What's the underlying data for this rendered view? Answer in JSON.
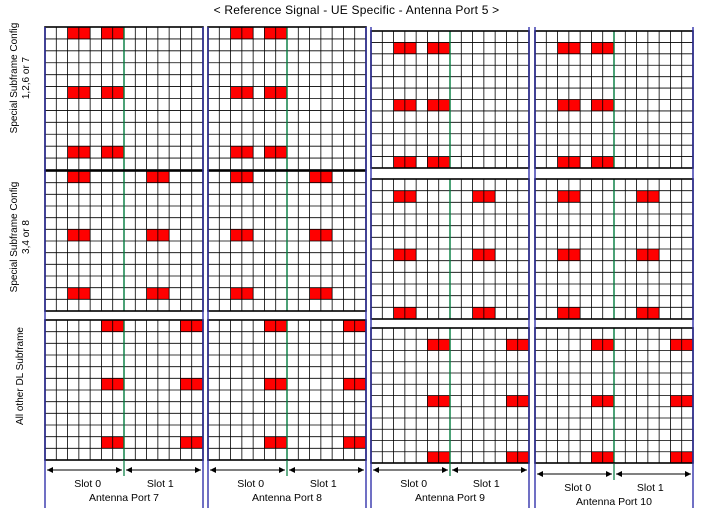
{
  "title": "< Reference Signal - UE Specific - Antenna Port 5 >",
  "row_labels": [
    {
      "line1": "Special Subframe Config",
      "line2": "1,2,6 or 7"
    },
    {
      "line1": "Special Subframe Config",
      "line2": "3,4 or 8"
    },
    {
      "line1": "All other DL  Subframe",
      "line2": ""
    }
  ],
  "slot_labels": [
    "Slot 0",
    "Slot 1"
  ],
  "ports": [
    {
      "label": "Antenna Port 7"
    },
    {
      "label": "Antenna Port 8"
    },
    {
      "label": "Antenna Port 9"
    },
    {
      "label": "Antenna Port 10"
    }
  ],
  "grid": {
    "symbols_per_subframe": 14,
    "subcarriers": 12
  },
  "patterns": [
    [
      {
        "symbols": [
          2,
          5
        ],
        "subcarriers": [
          0,
          5,
          10
        ]
      },
      {
        "symbols": [
          2,
          5
        ],
        "subcarriers": [
          0,
          5,
          10
        ]
      },
      {
        "symbols": [
          2,
          5
        ],
        "subcarriers": [
          1,
          6,
          11
        ]
      },
      {
        "symbols": [
          2,
          5
        ],
        "subcarriers": [
          1,
          6,
          11
        ]
      }
    ],
    [
      {
        "symbols": [
          2,
          9
        ],
        "subcarriers": [
          0,
          5,
          10
        ]
      },
      {
        "symbols": [
          2,
          9
        ],
        "subcarriers": [
          0,
          5,
          10
        ]
      },
      {
        "symbols": [
          2,
          9
        ],
        "subcarriers": [
          1,
          6,
          11
        ]
      },
      {
        "symbols": [
          2,
          9
        ],
        "subcarriers": [
          1,
          6,
          11
        ]
      }
    ],
    [
      {
        "symbols": [
          5,
          12
        ],
        "subcarriers": [
          0,
          5,
          10
        ]
      },
      {
        "symbols": [
          5,
          12
        ],
        "subcarriers": [
          0,
          5,
          10
        ]
      },
      {
        "symbols": [
          5,
          12
        ],
        "subcarriers": [
          1,
          6,
          11
        ]
      },
      {
        "symbols": [
          5,
          12
        ],
        "subcarriers": [
          1,
          6,
          11
        ]
      }
    ]
  ],
  "colors": {
    "re_fill": "#ff0000",
    "grid_line": "#000000",
    "frame_line": "#3333aa",
    "slot_divider": "#007a3d"
  }
}
